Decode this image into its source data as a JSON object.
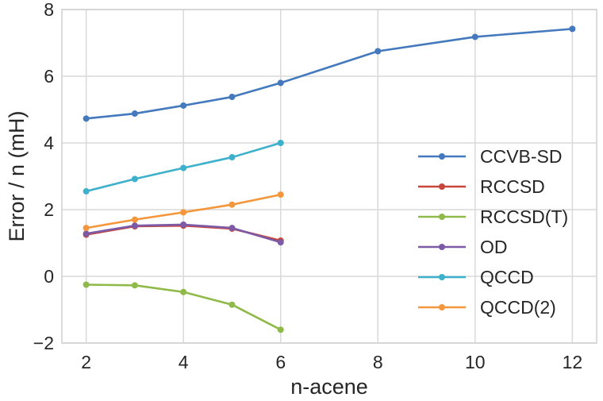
{
  "chart_data": {
    "type": "line",
    "title": "",
    "xlabel": "n-acene",
    "ylabel": "Error / n (mH)",
    "xlim": [
      1.5,
      12.5
    ],
    "ylim": [
      -2,
      8
    ],
    "xticks": [
      2,
      4,
      6,
      8,
      10,
      12
    ],
    "yticks": [
      -2,
      0,
      2,
      4,
      6,
      8
    ],
    "ytick_labels": [
      "−2",
      "0",
      "2",
      "4",
      "6",
      "8"
    ],
    "grid": true,
    "legend_position": "center-right",
    "series": [
      {
        "name": "CCVB-SD",
        "color": "#4479bd",
        "x": [
          2,
          3,
          4,
          5,
          6,
          8,
          10,
          12
        ],
        "y": [
          4.73,
          4.88,
          5.12,
          5.38,
          5.8,
          6.75,
          7.18,
          7.42
        ]
      },
      {
        "name": "RCCSD",
        "color": "#c8453b",
        "x": [
          2,
          3,
          4,
          5,
          6
        ],
        "y": [
          1.25,
          1.5,
          1.52,
          1.43,
          1.07
        ]
      },
      {
        "name": "RCCSD(T)",
        "color": "#8fba4a",
        "x": [
          2,
          3,
          4,
          5,
          6
        ],
        "y": [
          -0.25,
          -0.27,
          -0.47,
          -0.85,
          -1.6
        ]
      },
      {
        "name": "OD",
        "color": "#7d5aa6",
        "x": [
          2,
          3,
          4,
          5,
          6
        ],
        "y": [
          1.28,
          1.52,
          1.55,
          1.45,
          1.02
        ]
      },
      {
        "name": "QCCD",
        "color": "#3db0cc",
        "x": [
          2,
          3,
          4,
          5,
          6
        ],
        "y": [
          2.55,
          2.92,
          3.25,
          3.57,
          4.0
        ]
      },
      {
        "name": "QCCD(2)",
        "color": "#f4963b",
        "x": [
          2,
          3,
          4,
          5,
          6
        ],
        "y": [
          1.45,
          1.7,
          1.92,
          2.15,
          2.45
        ]
      }
    ]
  }
}
